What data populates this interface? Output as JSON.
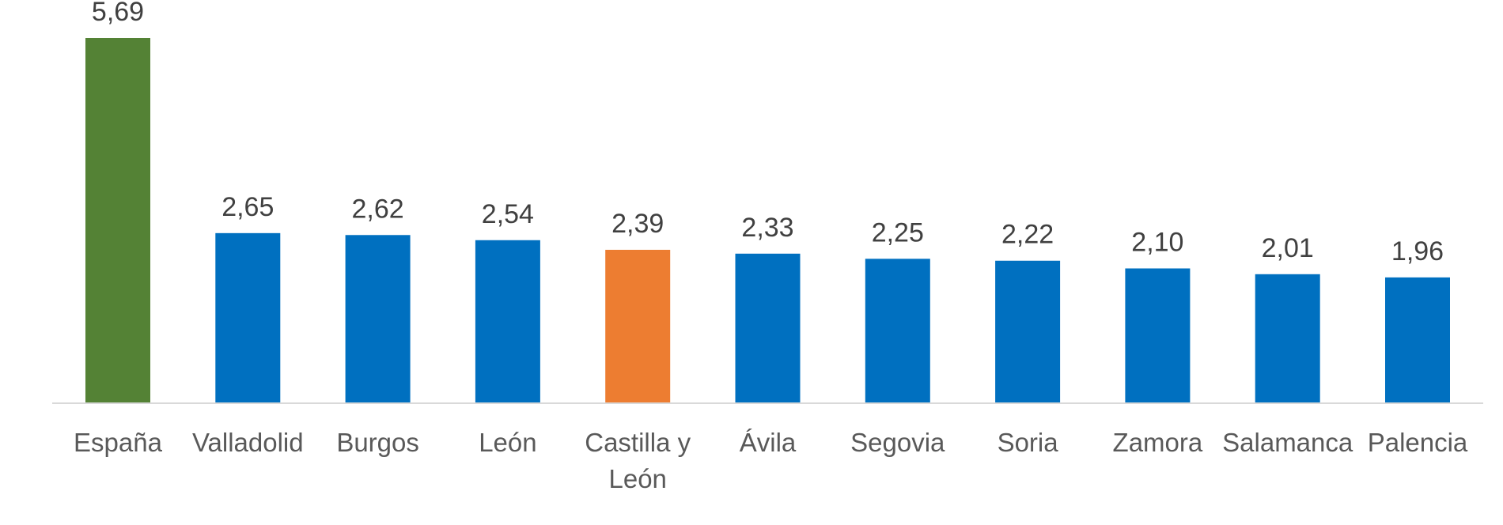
{
  "chart_data": {
    "type": "bar",
    "title": "",
    "xlabel": "",
    "ylabel": "",
    "ylim": [
      0,
      5.69
    ],
    "grid": false,
    "legend": "none",
    "categories": [
      "España",
      "Valladolid",
      "Burgos",
      "León",
      "Castilla y León",
      "Ávila",
      "Segovia",
      "Soria",
      "Zamora",
      "Salamanca",
      "Palencia"
    ],
    "category_lines": [
      [
        "España"
      ],
      [
        "Valladolid"
      ],
      [
        "Burgos"
      ],
      [
        "León"
      ],
      [
        "Castilla y",
        "León"
      ],
      [
        "Ávila"
      ],
      [
        "Segovia"
      ],
      [
        "Soria"
      ],
      [
        "Zamora"
      ],
      [
        "Salamanca"
      ],
      [
        "Palencia"
      ]
    ],
    "values": [
      5.69,
      2.65,
      2.62,
      2.54,
      2.39,
      2.33,
      2.25,
      2.22,
      2.1,
      2.01,
      1.96
    ],
    "value_labels": [
      "5,69",
      "2,65",
      "2,62",
      "2,54",
      "2,39",
      "2,33",
      "2,25",
      "2,22",
      "2,10",
      "2,01",
      "1,96"
    ],
    "bar_colors": [
      "#548235",
      "#0070C0",
      "#0070C0",
      "#0070C0",
      "#ED7D31",
      "#0070C0",
      "#0070C0",
      "#0070C0",
      "#0070C0",
      "#0070C0",
      "#0070C0"
    ],
    "axis_color": "#D9D9D9"
  }
}
